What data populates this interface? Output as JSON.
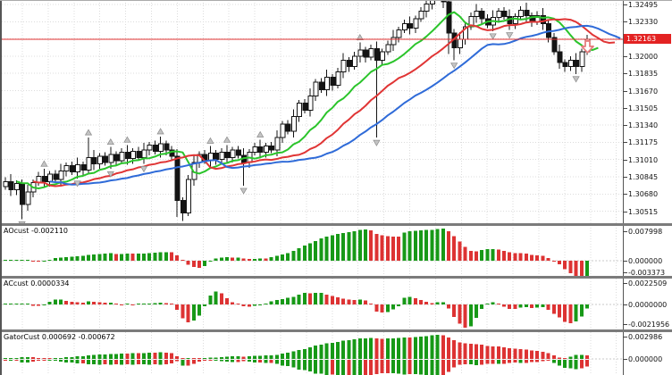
{
  "price_axis": {
    "tick_labels": [
      "1.32495",
      "1.32330",
      "1.32000",
      "1.31835",
      "1.31670",
      "1.31505",
      "1.31340",
      "1.31175",
      "1.31010",
      "1.30845",
      "1.30680",
      "1.30515"
    ],
    "current_price_label": "1.32163"
  },
  "panels": {
    "ao": {
      "label": "AOcust -0.002110",
      "axis_labels": [
        "0.007998",
        "0.000000",
        "-0.003373"
      ]
    },
    "ac": {
      "label": "ACcust 0.0000334",
      "axis_labels": [
        "0.0022509",
        "0.0000000",
        "-0.0021956"
      ]
    },
    "gator": {
      "label": "GatorCust 0.000692 -0.000672",
      "axis_labels": [
        "0.002986",
        "0.000000"
      ]
    }
  },
  "colors": {
    "grid": "#dcdcdc",
    "candle_up_fill": "#ffffff",
    "candle_down_fill": "#141414",
    "candle_outline": "#141414",
    "alligator_lips": "#2bc42b",
    "alligator_teeth": "#e03535",
    "alligator_jaw": "#2f6bd8",
    "hist_up": "#179917",
    "hist_down": "#dd3333",
    "price_line": "#e03030",
    "price_badge_bg": "#e32222",
    "fractal": "#c4c4c4",
    "fractal_edge": "#8a8a8a",
    "signal_arrow": "#e57d7d",
    "separator": "#7b7b7b",
    "axis_line": "#555555",
    "zero_line": "#c8c8c8"
  },
  "chart_data": {
    "type": "candlestick",
    "current_price": 1.32163,
    "y_ticks": [
      1.32495,
      1.3233,
      1.32165,
      1.32,
      1.31835,
      1.3167,
      1.31505,
      1.3134,
      1.31175,
      1.3101,
      1.30845,
      1.3068,
      1.30515
    ],
    "candles": {
      "closes": [
        1.308,
        1.3072,
        1.3078,
        1.3058,
        1.307,
        1.3079,
        1.3085,
        1.308,
        1.3087,
        1.3082,
        1.309,
        1.3095,
        1.3089,
        1.3096,
        1.3091,
        1.3103,
        1.3097,
        1.3104,
        1.3098,
        1.3106,
        1.31,
        1.3108,
        1.3102,
        1.3109,
        1.3103,
        1.311,
        1.3115,
        1.3109,
        1.3116,
        1.311,
        1.3104,
        1.3062,
        1.305,
        1.3082,
        1.3098,
        1.3106,
        1.31,
        1.3107,
        1.3101,
        1.3108,
        1.3103,
        1.311,
        1.3105,
        1.3098,
        1.3108,
        1.3113,
        1.3108,
        1.3114,
        1.311,
        1.3122,
        1.3135,
        1.3128,
        1.3142,
        1.3155,
        1.3148,
        1.3162,
        1.3175,
        1.3168,
        1.318,
        1.3172,
        1.3185,
        1.3196,
        1.319,
        1.32,
        1.3206,
        1.3199,
        1.3207,
        1.3196,
        1.3204,
        1.3211,
        1.3218,
        1.3225,
        1.3231,
        1.3227,
        1.3236,
        1.3243,
        1.325,
        1.3256,
        1.3261,
        1.3252,
        1.3222,
        1.3208,
        1.3216,
        1.3228,
        1.3238,
        1.3243,
        1.3236,
        1.323,
        1.3237,
        1.3243,
        1.3238,
        1.3231,
        1.3238,
        1.3244,
        1.3239,
        1.3233,
        1.3239,
        1.3231,
        1.3218,
        1.3204,
        1.3194,
        1.319,
        1.3196,
        1.319,
        1.3204,
        1.32163
      ],
      "wick_overrides": {
        "3": [
          null,
          1.3044
        ],
        "15": [
          1.3122,
          null
        ],
        "31": [
          null,
          1.3046
        ],
        "32": [
          null,
          1.3042
        ],
        "43": [
          null,
          1.3076
        ],
        "67": [
          null,
          1.3122
        ],
        "78": [
          1.3268,
          null
        ],
        "80": [
          null,
          1.3202
        ],
        "81": [
          null,
          1.3196
        ],
        "102": [
          null,
          1.3186
        ],
        "103": [
          null,
          1.3183
        ]
      }
    },
    "overlays": [
      {
        "name": "alligator-lips",
        "type": "smma",
        "period": 5,
        "shift": 2,
        "color_key": "alligator_lips"
      },
      {
        "name": "alligator-teeth",
        "type": "smma",
        "period": 8,
        "shift": 5,
        "color_key": "alligator_teeth"
      },
      {
        "name": "alligator-jaw",
        "type": "smma",
        "period": 13,
        "shift": 8,
        "color_key": "alligator_jaw"
      }
    ],
    "indicators": [
      {
        "name": "AOcust",
        "type": "histogram",
        "current_value": "-0.002110"
      },
      {
        "name": "ACcust",
        "type": "histogram",
        "current_value": "0.0000334"
      },
      {
        "name": "GatorCust",
        "type": "mirror-histogram",
        "current_value": "0.000692 -0.000672"
      }
    ],
    "signal_arrow": {
      "candle_index": 105,
      "price": 1.32145,
      "direction": "down"
    }
  }
}
